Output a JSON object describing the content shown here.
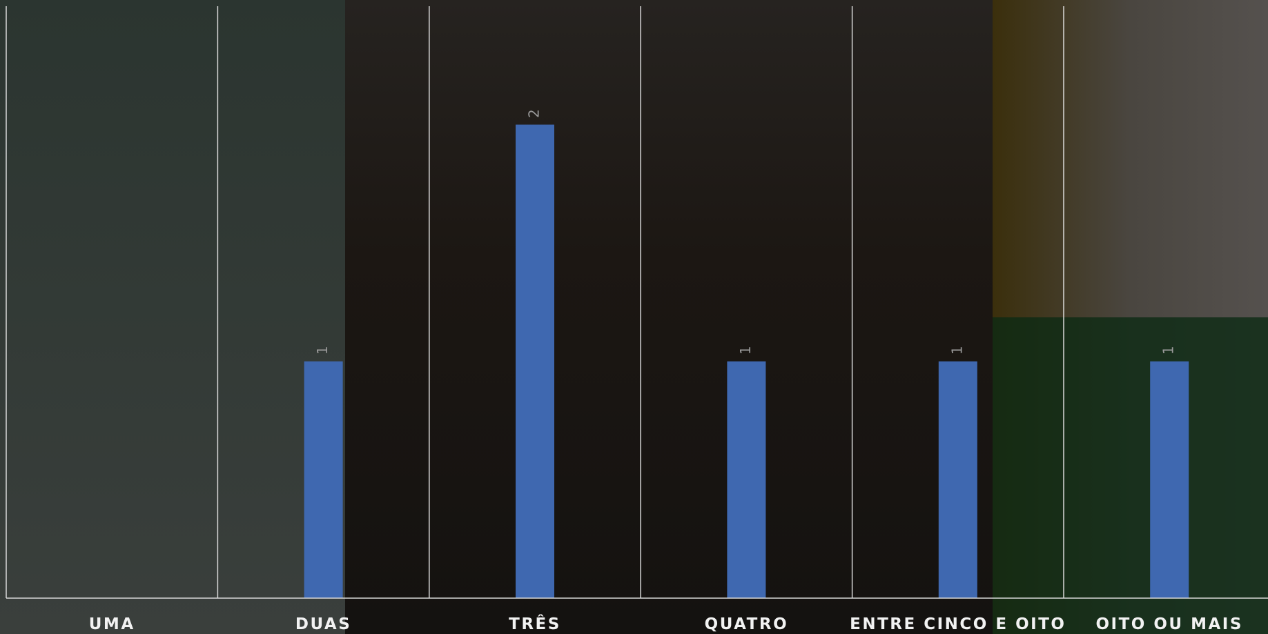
{
  "chart_data": {
    "type": "bar",
    "categories": [
      "UMA",
      "DUAS",
      "TRÊS",
      "QUATRO",
      "ENTRE CINCO E OITO",
      "OITO OU MAIS"
    ],
    "values": [
      null,
      1,
      2,
      1,
      1,
      1
    ],
    "color": "#3f68b0",
    "ylim": [
      0,
      2.5
    ]
  }
}
